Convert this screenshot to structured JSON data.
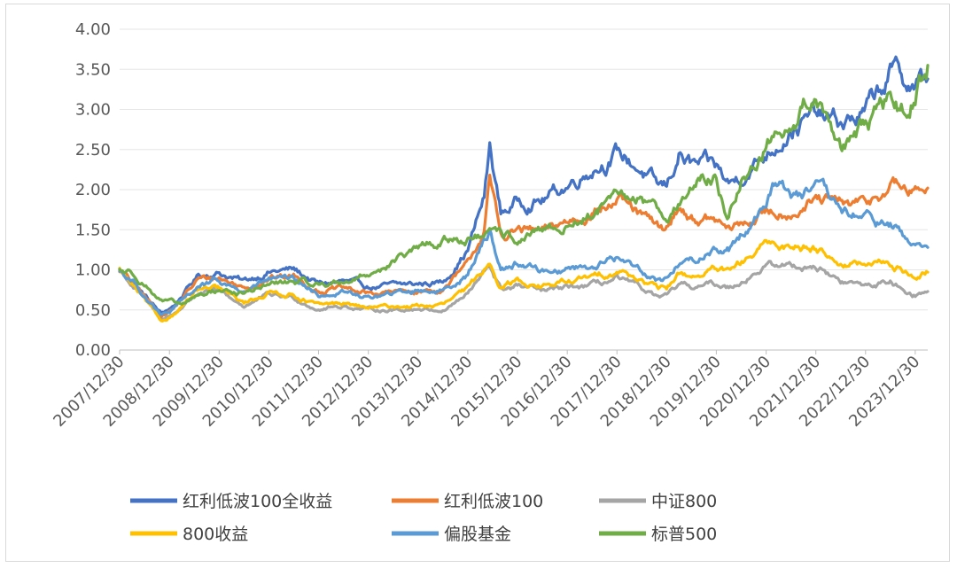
{
  "chart_data": {
    "type": "line",
    "title": "",
    "xlabel": "",
    "ylabel": "",
    "ylim": [
      0,
      4
    ],
    "yticks": [
      "0.00",
      "0.50",
      "1.00",
      "1.50",
      "2.00",
      "2.50",
      "3.00",
      "3.50",
      "4.00"
    ],
    "xlim": [
      "2007/12/30",
      "2024/03/31"
    ],
    "xticks": [
      "2007/12/30",
      "2008/12/30",
      "2009/12/30",
      "2010/12/30",
      "2011/12/30",
      "2012/12/30",
      "2013/12/30",
      "2014/12/30",
      "2015/12/30",
      "2016/12/30",
      "2017/12/30",
      "2018/12/30",
      "2019/12/30",
      "2020/12/30",
      "2021/12/30",
      "2022/12/30",
      "2023/12/30"
    ],
    "grid": "horizontal",
    "legend_position": "bottom",
    "series": [
      {
        "name": "红利低波100全收益",
        "color": "#4472c4",
        "points": [
          [
            "2007/12/30",
            1.0
          ],
          [
            "2008/04/30",
            0.8
          ],
          [
            "2008/10/30",
            0.45
          ],
          [
            "2009/01/30",
            0.55
          ],
          [
            "2009/07/30",
            0.93
          ],
          [
            "2009/12/30",
            0.97
          ],
          [
            "2010/06/30",
            0.85
          ],
          [
            "2010/12/30",
            0.98
          ],
          [
            "2011/06/30",
            1.0
          ],
          [
            "2011/12/30",
            0.82
          ],
          [
            "2012/06/30",
            0.85
          ],
          [
            "2012/12/30",
            0.78
          ],
          [
            "2013/06/30",
            0.8
          ],
          [
            "2013/12/30",
            0.82
          ],
          [
            "2014/06/30",
            0.85
          ],
          [
            "2014/12/30",
            1.25
          ],
          [
            "2015/04/30",
            1.9
          ],
          [
            "2015/06/10",
            2.52
          ],
          [
            "2015/08/30",
            1.7
          ],
          [
            "2015/12/30",
            1.85
          ],
          [
            "2016/06/30",
            1.88
          ],
          [
            "2016/12/30",
            2.05
          ],
          [
            "2017/06/30",
            2.3
          ],
          [
            "2017/12/30",
            2.45
          ],
          [
            "2018/06/30",
            2.25
          ],
          [
            "2018/10/30",
            2.0
          ],
          [
            "2018/12/30",
            2.02
          ],
          [
            "2019/03/30",
            2.45
          ],
          [
            "2019/06/30",
            2.3
          ],
          [
            "2019/12/30",
            2.25
          ],
          [
            "2020/03/30",
            2.05
          ],
          [
            "2020/12/30",
            2.45
          ],
          [
            "2021/06/30",
            2.8
          ],
          [
            "2021/12/30",
            2.9
          ],
          [
            "2022/06/30",
            2.8
          ],
          [
            "2022/12/30",
            2.95
          ],
          [
            "2023/06/30",
            3.45
          ],
          [
            "2023/12/30",
            3.3
          ],
          [
            "2024/03/31",
            3.38
          ]
        ]
      },
      {
        "name": "红利低波100",
        "color": "#ed7d31",
        "points": [
          [
            "2007/12/30",
            1.0
          ],
          [
            "2008/04/30",
            0.78
          ],
          [
            "2008/10/30",
            0.43
          ],
          [
            "2009/01/30",
            0.52
          ],
          [
            "2009/07/30",
            0.88
          ],
          [
            "2009/12/30",
            0.9
          ],
          [
            "2010/06/30",
            0.78
          ],
          [
            "2010/12/30",
            0.9
          ],
          [
            "2011/06/30",
            0.92
          ],
          [
            "2011/12/30",
            0.75
          ],
          [
            "2012/06/30",
            0.76
          ],
          [
            "2012/12/30",
            0.7
          ],
          [
            "2013/06/30",
            0.72
          ],
          [
            "2013/12/30",
            0.73
          ],
          [
            "2014/06/30",
            0.75
          ],
          [
            "2014/12/30",
            1.05
          ],
          [
            "2015/04/30",
            1.5
          ],
          [
            "2015/06/10",
            2.1
          ],
          [
            "2015/08/30",
            1.4
          ],
          [
            "2015/12/30",
            1.5
          ],
          [
            "2016/06/30",
            1.45
          ],
          [
            "2016/12/30",
            1.6
          ],
          [
            "2017/06/30",
            1.75
          ],
          [
            "2017/12/30",
            1.85
          ],
          [
            "2018/06/30",
            1.65
          ],
          [
            "2018/10/30",
            1.5
          ],
          [
            "2018/12/30",
            1.5
          ],
          [
            "2019/03/30",
            1.8
          ],
          [
            "2019/06/30",
            1.65
          ],
          [
            "2019/12/30",
            1.6
          ],
          [
            "2020/03/30",
            1.48
          ],
          [
            "2020/12/30",
            1.7
          ],
          [
            "2021/06/30",
            1.75
          ],
          [
            "2021/12/30",
            1.85
          ],
          [
            "2022/06/30",
            1.8
          ],
          [
            "2022/12/30",
            1.8
          ],
          [
            "2023/06/30",
            2.05
          ],
          [
            "2023/12/30",
            1.95
          ],
          [
            "2024/03/31",
            2.02
          ]
        ]
      },
      {
        "name": "中证800",
        "color": "#a5a5a5",
        "points": [
          [
            "2007/12/30",
            1.0
          ],
          [
            "2008/04/30",
            0.75
          ],
          [
            "2008/10/30",
            0.38
          ],
          [
            "2009/01/30",
            0.45
          ],
          [
            "2009/07/30",
            0.72
          ],
          [
            "2009/12/30",
            0.72
          ],
          [
            "2010/06/30",
            0.55
          ],
          [
            "2010/12/30",
            0.68
          ],
          [
            "2011/06/30",
            0.65
          ],
          [
            "2011/12/30",
            0.52
          ],
          [
            "2012/06/30",
            0.55
          ],
          [
            "2012/12/30",
            0.5
          ],
          [
            "2013/06/30",
            0.5
          ],
          [
            "2013/12/30",
            0.52
          ],
          [
            "2014/06/30",
            0.5
          ],
          [
            "2014/12/30",
            0.7
          ],
          [
            "2015/04/30",
            0.95
          ],
          [
            "2015/06/10",
            1.05
          ],
          [
            "2015/08/30",
            0.75
          ],
          [
            "2015/12/30",
            0.8
          ],
          [
            "2016/06/30",
            0.72
          ],
          [
            "2016/12/30",
            0.77
          ],
          [
            "2017/06/30",
            0.8
          ],
          [
            "2017/12/30",
            0.88
          ],
          [
            "2018/06/30",
            0.75
          ],
          [
            "2018/10/30",
            0.65
          ],
          [
            "2018/12/30",
            0.65
          ],
          [
            "2019/03/30",
            0.8
          ],
          [
            "2019/06/30",
            0.78
          ],
          [
            "2019/12/30",
            0.82
          ],
          [
            "2020/03/30",
            0.78
          ],
          [
            "2020/12/30",
            1.05
          ],
          [
            "2021/06/30",
            1.05
          ],
          [
            "2021/12/30",
            1.05
          ],
          [
            "2022/06/30",
            0.85
          ],
          [
            "2022/12/30",
            0.8
          ],
          [
            "2023/06/30",
            0.85
          ],
          [
            "2023/12/30",
            0.7
          ],
          [
            "2024/03/31",
            0.73
          ]
        ]
      },
      {
        "name": "800收益",
        "color": "#ffc000",
        "points": [
          [
            "2007/12/30",
            1.0
          ],
          [
            "2008/04/30",
            0.74
          ],
          [
            "2008/10/30",
            0.35
          ],
          [
            "2009/01/30",
            0.45
          ],
          [
            "2009/07/30",
            0.75
          ],
          [
            "2009/12/30",
            0.75
          ],
          [
            "2010/06/30",
            0.58
          ],
          [
            "2010/12/30",
            0.72
          ],
          [
            "2011/06/30",
            0.7
          ],
          [
            "2011/12/30",
            0.55
          ],
          [
            "2012/06/30",
            0.58
          ],
          [
            "2012/12/30",
            0.52
          ],
          [
            "2013/06/30",
            0.54
          ],
          [
            "2013/12/30",
            0.55
          ],
          [
            "2014/06/30",
            0.56
          ],
          [
            "2014/12/30",
            0.75
          ],
          [
            "2015/04/30",
            1.0
          ],
          [
            "2015/06/10",
            1.12
          ],
          [
            "2015/08/30",
            0.82
          ],
          [
            "2015/12/30",
            0.87
          ],
          [
            "2016/06/30",
            0.8
          ],
          [
            "2016/12/30",
            0.85
          ],
          [
            "2017/06/30",
            0.9
          ],
          [
            "2017/12/30",
            1.0
          ],
          [
            "2018/06/30",
            0.88
          ],
          [
            "2018/10/30",
            0.75
          ],
          [
            "2018/12/30",
            0.76
          ],
          [
            "2019/03/30",
            0.95
          ],
          [
            "2019/06/30",
            0.92
          ],
          [
            "2019/12/30",
            1.0
          ],
          [
            "2020/03/30",
            0.95
          ],
          [
            "2020/12/30",
            1.3
          ],
          [
            "2021/06/30",
            1.3
          ],
          [
            "2021/12/30",
            1.3
          ],
          [
            "2022/06/30",
            1.1
          ],
          [
            "2022/12/30",
            1.05
          ],
          [
            "2023/06/30",
            1.08
          ],
          [
            "2023/12/30",
            0.92
          ],
          [
            "2024/03/31",
            0.97
          ]
        ]
      },
      {
        "name": "偏股基金",
        "color": "#5b9bd5",
        "points": [
          [
            "2007/12/30",
            1.0
          ],
          [
            "2008/04/30",
            0.82
          ],
          [
            "2008/10/30",
            0.42
          ],
          [
            "2009/01/30",
            0.5
          ],
          [
            "2009/07/30",
            0.8
          ],
          [
            "2009/12/30",
            0.85
          ],
          [
            "2010/06/30",
            0.72
          ],
          [
            "2010/12/30",
            0.88
          ],
          [
            "2011/06/30",
            0.85
          ],
          [
            "2011/12/30",
            0.68
          ],
          [
            "2012/06/30",
            0.72
          ],
          [
            "2012/12/30",
            0.65
          ],
          [
            "2013/06/30",
            0.7
          ],
          [
            "2013/12/30",
            0.75
          ],
          [
            "2014/06/30",
            0.75
          ],
          [
            "2014/12/30",
            0.95
          ],
          [
            "2015/04/30",
            1.35
          ],
          [
            "2015/06/10",
            1.5
          ],
          [
            "2015/08/30",
            1.0
          ],
          [
            "2015/12/30",
            1.1
          ],
          [
            "2016/06/30",
            0.98
          ],
          [
            "2016/12/30",
            1.02
          ],
          [
            "2017/06/30",
            1.05
          ],
          [
            "2017/12/30",
            1.15
          ],
          [
            "2018/06/30",
            1.0
          ],
          [
            "2018/10/30",
            0.88
          ],
          [
            "2018/12/30",
            0.88
          ],
          [
            "2019/03/30",
            1.1
          ],
          [
            "2019/06/30",
            1.1
          ],
          [
            "2019/12/30",
            1.28
          ],
          [
            "2020/03/30",
            1.25
          ],
          [
            "2020/12/30",
            1.85
          ],
          [
            "2021/02/15",
            2.1
          ],
          [
            "2021/06/30",
            1.95
          ],
          [
            "2021/12/30",
            2.0
          ],
          [
            "2022/06/30",
            1.7
          ],
          [
            "2022/12/30",
            1.65
          ],
          [
            "2023/06/30",
            1.55
          ],
          [
            "2023/12/30",
            1.3
          ],
          [
            "2024/03/31",
            1.28
          ]
        ]
      },
      {
        "name": "标普500",
        "color": "#70ad47",
        "points": [
          [
            "2007/12/30",
            1.0
          ],
          [
            "2008/04/30",
            0.95
          ],
          [
            "2008/10/30",
            0.62
          ],
          [
            "2009/03/30",
            0.55
          ],
          [
            "2009/07/30",
            0.68
          ],
          [
            "2009/12/30",
            0.75
          ],
          [
            "2010/06/30",
            0.7
          ],
          [
            "2010/12/30",
            0.82
          ],
          [
            "2011/06/30",
            0.85
          ],
          [
            "2011/12/30",
            0.82
          ],
          [
            "2012/06/30",
            0.85
          ],
          [
            "2012/12/30",
            0.95
          ],
          [
            "2013/06/30",
            1.1
          ],
          [
            "2013/12/30",
            1.25
          ],
          [
            "2014/06/30",
            1.35
          ],
          [
            "2014/12/30",
            1.4
          ],
          [
            "2015/06/30",
            1.42
          ],
          [
            "2015/12/30",
            1.38
          ],
          [
            "2016/06/30",
            1.45
          ],
          [
            "2016/12/30",
            1.55
          ],
          [
            "2017/06/30",
            1.7
          ],
          [
            "2017/12/30",
            1.85
          ],
          [
            "2018/06/30",
            1.9
          ],
          [
            "2018/12/30",
            1.7
          ],
          [
            "2019/06/30",
            2.0
          ],
          [
            "2019/12/30",
            2.2
          ],
          [
            "2020/03/20",
            1.6
          ],
          [
            "2020/06/30",
            2.1
          ],
          [
            "2020/12/30",
            2.55
          ],
          [
            "2021/06/30",
            2.9
          ],
          [
            "2021/12/30",
            3.2
          ],
          [
            "2022/06/30",
            2.6
          ],
          [
            "2022/12/30",
            2.7
          ],
          [
            "2023/06/30",
            3.1
          ],
          [
            "2023/10/30",
            2.95
          ],
          [
            "2023/12/30",
            3.2
          ],
          [
            "2024/03/31",
            3.55
          ]
        ]
      }
    ]
  }
}
